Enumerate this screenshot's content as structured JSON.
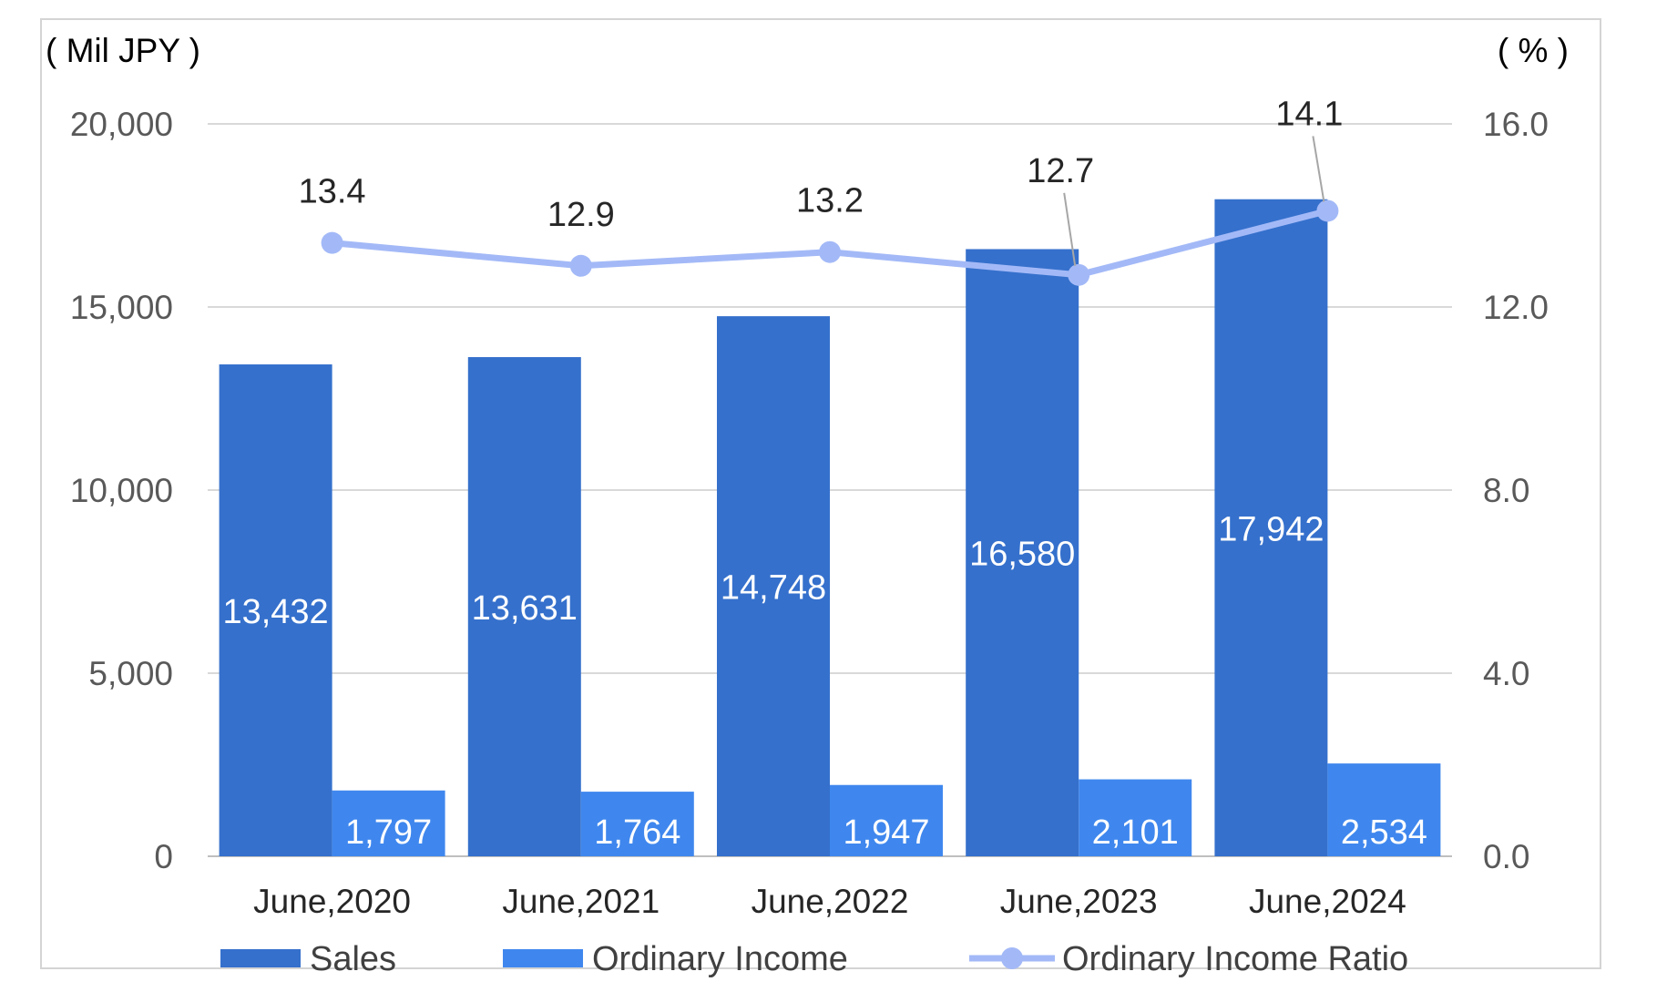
{
  "chart_data": {
    "type": "bar",
    "title": "",
    "left_axis_unit": "( Mil JPY )",
    "right_axis_unit": "( % )",
    "categories": [
      "June,2020",
      "June,2021",
      "June,2022",
      "June,2023",
      "June,2024"
    ],
    "series": [
      {
        "name": "Sales",
        "type": "bar",
        "axis": "left",
        "color": "#3570CC",
        "values": [
          13432,
          13631,
          14748,
          16580,
          17942
        ],
        "labels": [
          "13,432",
          "13,631",
          "14,748",
          "16,580",
          "17,942"
        ]
      },
      {
        "name": "Ordinary Income",
        "type": "bar",
        "axis": "left",
        "color": "#3F87EE",
        "values": [
          1797,
          1764,
          1947,
          2101,
          2534
        ],
        "labels": [
          "1,797",
          "1,764",
          "1,947",
          "2,101",
          "2,534"
        ]
      },
      {
        "name": "Ordinary Income Ratio",
        "type": "line",
        "axis": "right",
        "color": "#A3B9F7",
        "values": [
          13.4,
          12.9,
          13.2,
          12.7,
          14.1
        ],
        "labels": [
          "13.4",
          "12.9",
          "13.2",
          "12.7",
          "14.1"
        ]
      }
    ],
    "y_left": {
      "min": 0,
      "max": 20000,
      "ticks": [
        0,
        5000,
        10000,
        15000,
        20000
      ],
      "tick_labels": [
        "0",
        "5,000",
        "10,000",
        "15,000",
        "20,000"
      ]
    },
    "y_right": {
      "min": 0,
      "max": 16,
      "ticks": [
        0,
        4,
        8,
        12,
        16
      ],
      "tick_labels": [
        "0.0",
        "4.0",
        "8.0",
        "12.0",
        "16.0"
      ]
    },
    "grid": true,
    "legend": "bottom"
  }
}
